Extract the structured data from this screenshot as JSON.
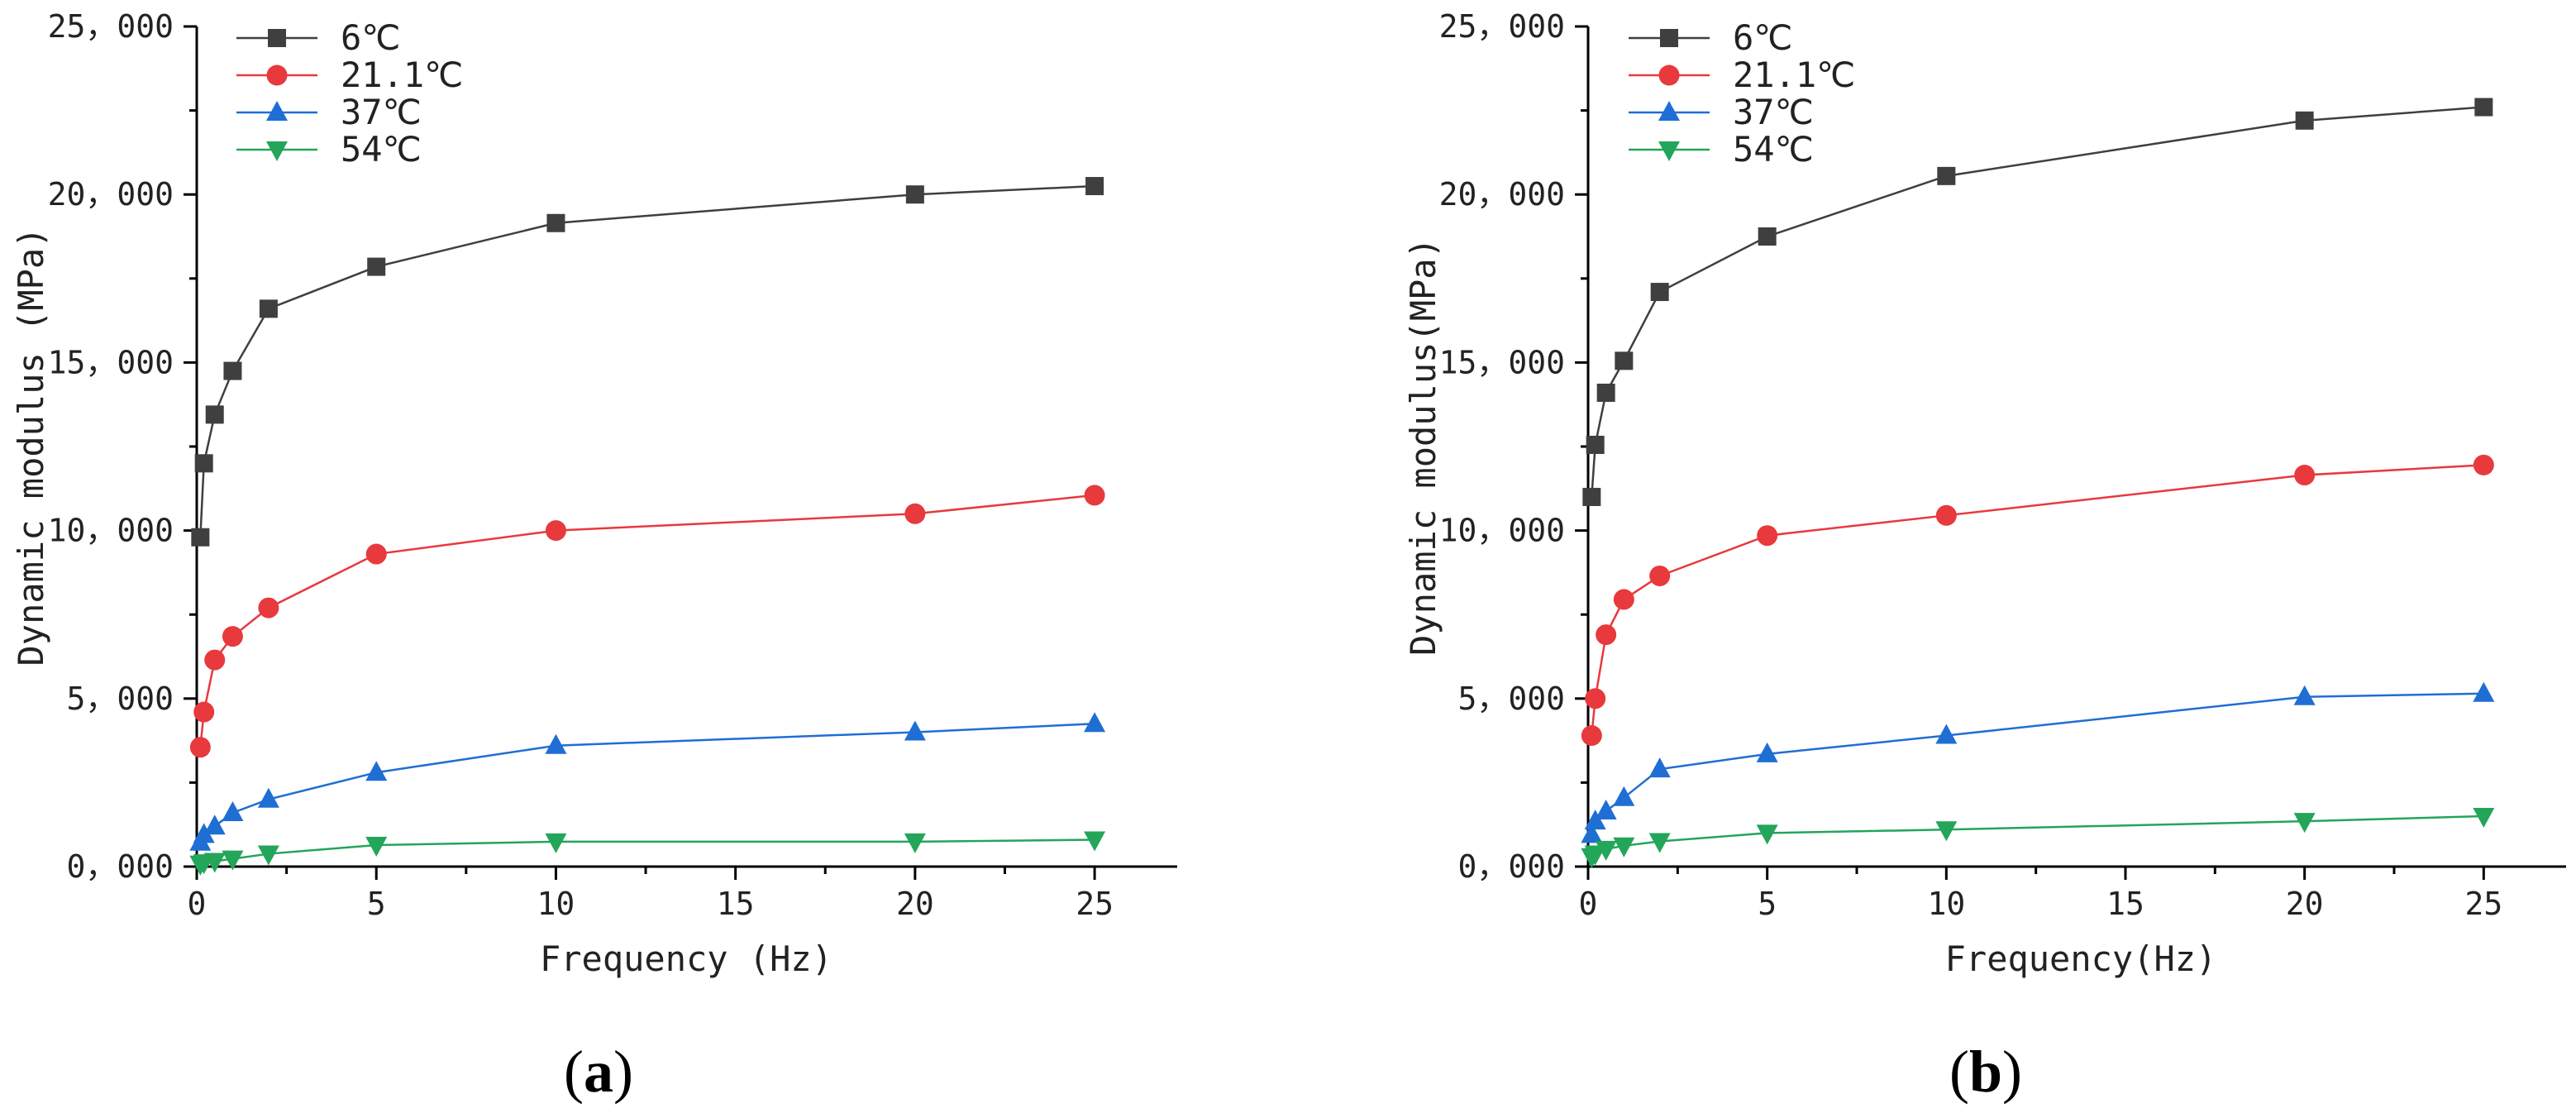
{
  "chart_data": [
    {
      "type": "line",
      "panel_label": "a",
      "panel_open": "(",
      "panel_close": ")",
      "xlabel": "Frequency (Hz)",
      "ylabel": "Dynamic modulus (MPa)",
      "xlim": [
        0,
        27.3
      ],
      "ylim": [
        0,
        25000
      ],
      "xticks": [
        0,
        5,
        10,
        15,
        20,
        25
      ],
      "xtick_labels": [
        "0",
        "5",
        "10",
        "15",
        "20",
        "25"
      ],
      "yticks": [
        0,
        5000,
        10000,
        15000,
        20000,
        25000
      ],
      "ytick_labels": [
        "0，000",
        "5，000",
        "10，000",
        "15，000",
        "20，000",
        "25，000"
      ],
      "legend_position": "top-left",
      "x": [
        0.1,
        0.2,
        0.5,
        1,
        2,
        5,
        10,
        20,
        25
      ],
      "series": [
        {
          "name": "6℃",
          "color": "#3f3f3f",
          "marker": "square",
          "values": [
            9800,
            12000,
            13450,
            14750,
            16600,
            17850,
            19150,
            20000,
            20250
          ]
        },
        {
          "name": "21.1℃",
          "color": "#e8393d",
          "marker": "circle",
          "values": [
            3550,
            4600,
            6150,
            6850,
            7700,
            9300,
            10000,
            10500,
            11050
          ]
        },
        {
          "name": "37℃",
          "color": "#1f6ed4",
          "marker": "triangle-up",
          "values": [
            720,
            950,
            1200,
            1600,
            2000,
            2800,
            3600,
            4000,
            4250
          ]
        },
        {
          "name": "54℃",
          "color": "#23a55a",
          "marker": "triangle-down",
          "values": [
            80,
            120,
            160,
            230,
            380,
            640,
            740,
            740,
            800
          ]
        }
      ]
    },
    {
      "type": "line",
      "panel_label": "b",
      "panel_open": "(",
      "panel_close": ")",
      "xlabel": "Frequency(Hz)",
      "ylabel": "Dynamic modulus(MPa)",
      "xlim": [
        0,
        27.3
      ],
      "ylim": [
        0,
        25000
      ],
      "xticks": [
        0,
        5,
        10,
        15,
        20,
        25
      ],
      "xtick_labels": [
        "0",
        "5",
        "10",
        "15",
        "20",
        "25"
      ],
      "yticks": [
        0,
        5000,
        10000,
        15000,
        20000,
        25000
      ],
      "ytick_labels": [
        "0，000",
        "5，000",
        "10，000",
        "15，000",
        "20，000",
        "25，000"
      ],
      "legend_position": "top-left",
      "x": [
        0.1,
        0.2,
        0.5,
        1,
        2,
        5,
        10,
        20,
        25
      ],
      "series": [
        {
          "name": "6℃",
          "color": "#3f3f3f",
          "marker": "square",
          "values": [
            11000,
            12550,
            14100,
            15050,
            17100,
            18750,
            20550,
            22200,
            22600
          ]
        },
        {
          "name": "21.1℃",
          "color": "#e8393d",
          "marker": "circle",
          "values": [
            3900,
            5000,
            6900,
            7950,
            8650,
            9850,
            10450,
            11650,
            11950
          ]
        },
        {
          "name": "37℃",
          "color": "#1f6ed4",
          "marker": "triangle-up",
          "values": [
            950,
            1350,
            1650,
            2050,
            2900,
            3350,
            3900,
            5050,
            5150
          ]
        },
        {
          "name": "54℃",
          "color": "#23a55a",
          "marker": "triangle-down",
          "values": [
            300,
            380,
            520,
            620,
            750,
            1000,
            1100,
            1350,
            1500
          ]
        }
      ]
    }
  ]
}
